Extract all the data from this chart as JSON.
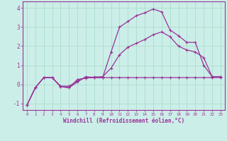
{
  "xlabel": "Windchill (Refroidissement éolien,°C)",
  "bg_color": "#cceee8",
  "grid_color": "#aaddcc",
  "line_color": "#993399",
  "xlim": [
    -0.5,
    23.5
  ],
  "ylim": [
    -1.35,
    4.35
  ],
  "yticks": [
    -1,
    0,
    1,
    2,
    3,
    4
  ],
  "xticks": [
    0,
    1,
    2,
    3,
    4,
    5,
    6,
    7,
    8,
    9,
    10,
    11,
    12,
    13,
    14,
    15,
    16,
    17,
    18,
    19,
    20,
    21,
    22,
    23
  ],
  "line1_x": [
    0,
    1,
    2,
    3,
    4,
    5,
    6,
    7,
    8,
    9,
    10,
    11,
    12,
    13,
    14,
    15,
    16,
    17,
    18,
    19,
    20,
    21,
    22,
    23
  ],
  "line1_y": [
    -1.1,
    -0.18,
    0.35,
    0.35,
    -0.12,
    -0.18,
    0.25,
    0.33,
    0.35,
    0.35,
    0.35,
    0.35,
    0.35,
    0.35,
    0.35,
    0.35,
    0.35,
    0.35,
    0.35,
    0.35,
    0.35,
    0.35,
    0.35,
    0.35
  ],
  "line2_x": [
    0,
    1,
    2,
    3,
    4,
    5,
    6,
    7,
    8,
    9,
    10,
    11,
    12,
    13,
    14,
    15,
    16,
    17,
    18,
    19,
    20,
    21,
    22,
    23
  ],
  "line2_y": [
    -1.1,
    -0.18,
    0.35,
    0.35,
    -0.12,
    -0.18,
    0.12,
    0.4,
    0.35,
    0.35,
    1.7,
    3.0,
    3.3,
    3.6,
    3.75,
    3.95,
    3.8,
    2.85,
    2.55,
    2.2,
    2.2,
    1.0,
    0.4,
    0.4
  ],
  "line3_x": [
    0,
    1,
    2,
    3,
    4,
    5,
    6,
    7,
    8,
    9,
    10,
    11,
    12,
    13,
    14,
    15,
    16,
    17,
    18,
    19,
    20,
    21,
    22,
    23
  ],
  "line3_y": [
    -1.1,
    -0.18,
    0.35,
    0.35,
    -0.1,
    -0.1,
    0.17,
    0.35,
    0.38,
    0.4,
    0.85,
    1.55,
    1.95,
    2.15,
    2.35,
    2.6,
    2.75,
    2.5,
    2.0,
    1.8,
    1.7,
    1.4,
    0.4,
    0.4
  ]
}
